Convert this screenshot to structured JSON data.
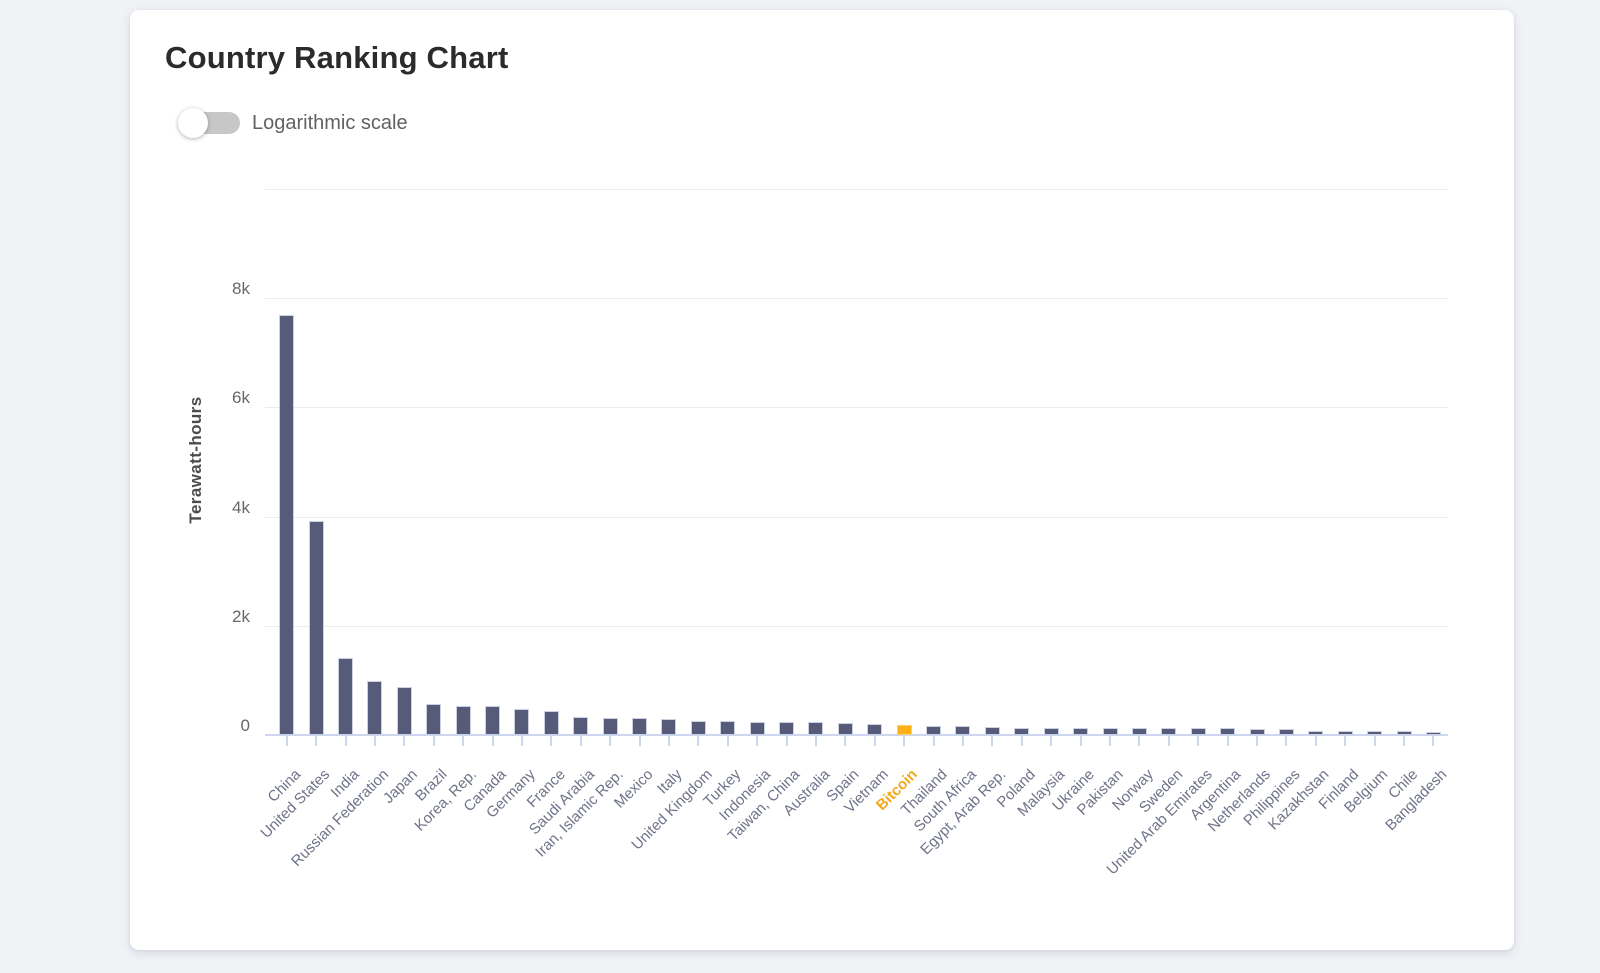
{
  "header": {
    "title": "Country Ranking Chart"
  },
  "controls": {
    "log_scale_label": "Logarithmic scale",
    "log_scale_on": false
  },
  "colors": {
    "bar": "#555b78",
    "bar_border": "#ccd1e2",
    "highlight_bar": "#fbb117",
    "highlight_label": "#f5a81c",
    "axis_line": "#ccd6f0",
    "gridline": "#ececec",
    "x_label": "#6f7389",
    "y_label": "#686868",
    "card_background": "#ffffff",
    "page_background": "#f0f2f6"
  },
  "chart_data": {
    "type": "bar",
    "title": "Country Ranking Chart",
    "xlabel": "",
    "ylabel": "Terawatt-hours",
    "unit": "TWh",
    "ylim": [
      0,
      10000
    ],
    "grid": true,
    "legend_position": "none",
    "yticks": [
      {
        "value": 0,
        "label": "0"
      },
      {
        "value": 2000,
        "label": "2k"
      },
      {
        "value": 4000,
        "label": "4k"
      },
      {
        "value": 6000,
        "label": "6k"
      },
      {
        "value": 8000,
        "label": "8k"
      },
      {
        "value": 10000,
        "label": ""
      }
    ],
    "categories": [
      "China",
      "United States",
      "India",
      "Russian Federation",
      "Japan",
      "Brazil",
      "Korea, Rep.",
      "Canada",
      "Germany",
      "France",
      "Saudi Arabia",
      "Iran, Islamic Rep.",
      "Mexico",
      "Italy",
      "United Kingdom",
      "Turkey",
      "Indonesia",
      "Taiwan, China",
      "Australia",
      "Spain",
      "Vietnam",
      "Bitcoin",
      "Thailand",
      "South Africa",
      "Egypt, Arab Rep.",
      "Poland",
      "Malaysia",
      "Ukraine",
      "Pakistan",
      "Norway",
      "Sweden",
      "United Arab Emirates",
      "Argentina",
      "Netherlands",
      "Philippines",
      "Kazakhstan",
      "Finland",
      "Belgium",
      "Chile",
      "Bangladesh"
    ],
    "values": [
      7700,
      3920,
      1410,
      990,
      885,
      560,
      535,
      530,
      470,
      440,
      335,
      315,
      305,
      300,
      260,
      255,
      245,
      240,
      235,
      215,
      210,
      180,
      172,
      165,
      140,
      137,
      135,
      133,
      131,
      129,
      127,
      124,
      121,
      112,
      108,
      80,
      77,
      75,
      73,
      62
    ],
    "highlight": {
      "category": "Bitcoin",
      "index": 21
    }
  }
}
